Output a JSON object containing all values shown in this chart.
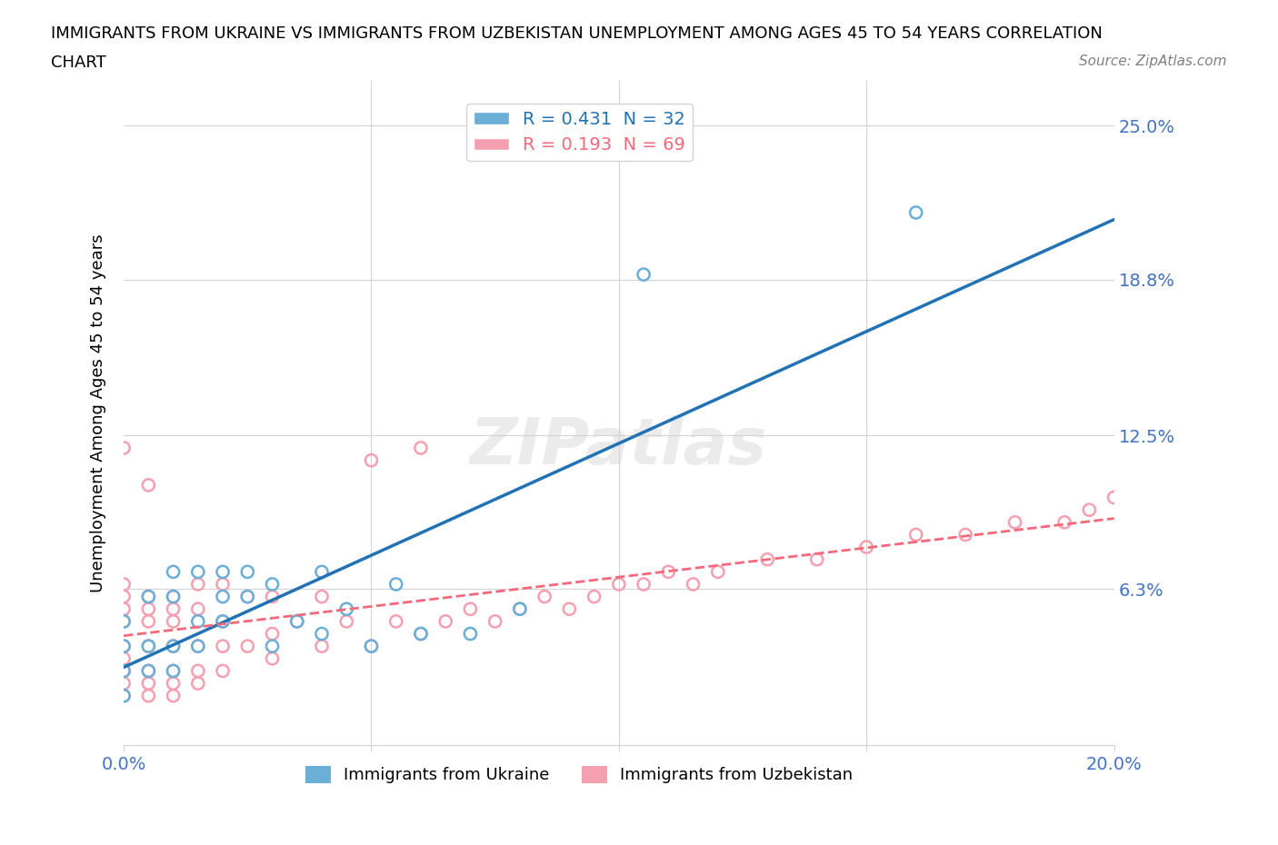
{
  "title_line1": "IMMIGRANTS FROM UKRAINE VS IMMIGRANTS FROM UZBEKISTAN UNEMPLOYMENT AMONG AGES 45 TO 54 YEARS CORRELATION",
  "title_line2": "CHART",
  "source_text": "Source: ZipAtlas.com",
  "ylabel_ticks": [
    0.0,
    0.063,
    0.125,
    0.188,
    0.25
  ],
  "ylabel_tick_labels": [
    "",
    "6.3%",
    "12.5%",
    "18.8%",
    "25.0%"
  ],
  "xmin": 0.0,
  "xmax": 0.2,
  "ymin": 0.0,
  "ymax": 0.268,
  "ukraine_R": 0.431,
  "ukraine_N": 32,
  "uzbekistan_R": 0.193,
  "uzbekistan_N": 69,
  "ukraine_color": "#6baed6",
  "uzbekistan_color": "#f4a0b0",
  "ukraine_line_color": "#2171b5",
  "uzbekistan_line_color": "#f4687a",
  "ukraine_scatter_x": [
    0.0,
    0.0,
    0.0,
    0.0,
    0.005,
    0.005,
    0.005,
    0.01,
    0.01,
    0.01,
    0.01,
    0.015,
    0.015,
    0.015,
    0.02,
    0.02,
    0.02,
    0.025,
    0.025,
    0.03,
    0.03,
    0.035,
    0.04,
    0.04,
    0.045,
    0.05,
    0.055,
    0.06,
    0.07,
    0.08,
    0.105,
    0.16
  ],
  "ukraine_scatter_y": [
    0.02,
    0.03,
    0.04,
    0.05,
    0.03,
    0.04,
    0.06,
    0.03,
    0.04,
    0.06,
    0.07,
    0.04,
    0.05,
    0.07,
    0.05,
    0.06,
    0.07,
    0.06,
    0.07,
    0.04,
    0.065,
    0.05,
    0.045,
    0.07,
    0.055,
    0.04,
    0.065,
    0.045,
    0.045,
    0.055,
    0.19,
    0.215
  ],
  "uzbekistan_scatter_x": [
    0.0,
    0.0,
    0.0,
    0.0,
    0.0,
    0.0,
    0.0,
    0.0,
    0.0,
    0.0,
    0.005,
    0.005,
    0.005,
    0.005,
    0.005,
    0.005,
    0.005,
    0.005,
    0.01,
    0.01,
    0.01,
    0.01,
    0.01,
    0.01,
    0.01,
    0.015,
    0.015,
    0.015,
    0.015,
    0.015,
    0.02,
    0.02,
    0.02,
    0.02,
    0.025,
    0.025,
    0.03,
    0.03,
    0.03,
    0.035,
    0.04,
    0.04,
    0.045,
    0.05,
    0.055,
    0.06,
    0.065,
    0.07,
    0.075,
    0.08,
    0.085,
    0.09,
    0.095,
    0.1,
    0.105,
    0.11,
    0.115,
    0.12,
    0.13,
    0.14,
    0.15,
    0.16,
    0.17,
    0.18,
    0.19,
    0.195,
    0.2,
    0.05,
    0.06
  ],
  "uzbekistan_scatter_y": [
    0.02,
    0.025,
    0.03,
    0.035,
    0.04,
    0.05,
    0.055,
    0.06,
    0.065,
    0.12,
    0.02,
    0.025,
    0.03,
    0.04,
    0.05,
    0.055,
    0.06,
    0.105,
    0.02,
    0.025,
    0.03,
    0.04,
    0.05,
    0.055,
    0.06,
    0.025,
    0.03,
    0.04,
    0.055,
    0.065,
    0.03,
    0.04,
    0.05,
    0.065,
    0.04,
    0.06,
    0.035,
    0.045,
    0.06,
    0.05,
    0.04,
    0.06,
    0.05,
    0.04,
    0.05,
    0.045,
    0.05,
    0.055,
    0.05,
    0.055,
    0.06,
    0.055,
    0.06,
    0.065,
    0.065,
    0.07,
    0.065,
    0.07,
    0.075,
    0.075,
    0.08,
    0.085,
    0.085,
    0.09,
    0.09,
    0.095,
    0.1,
    0.115,
    0.12
  ],
  "watermark_text": "ZIPatlas"
}
